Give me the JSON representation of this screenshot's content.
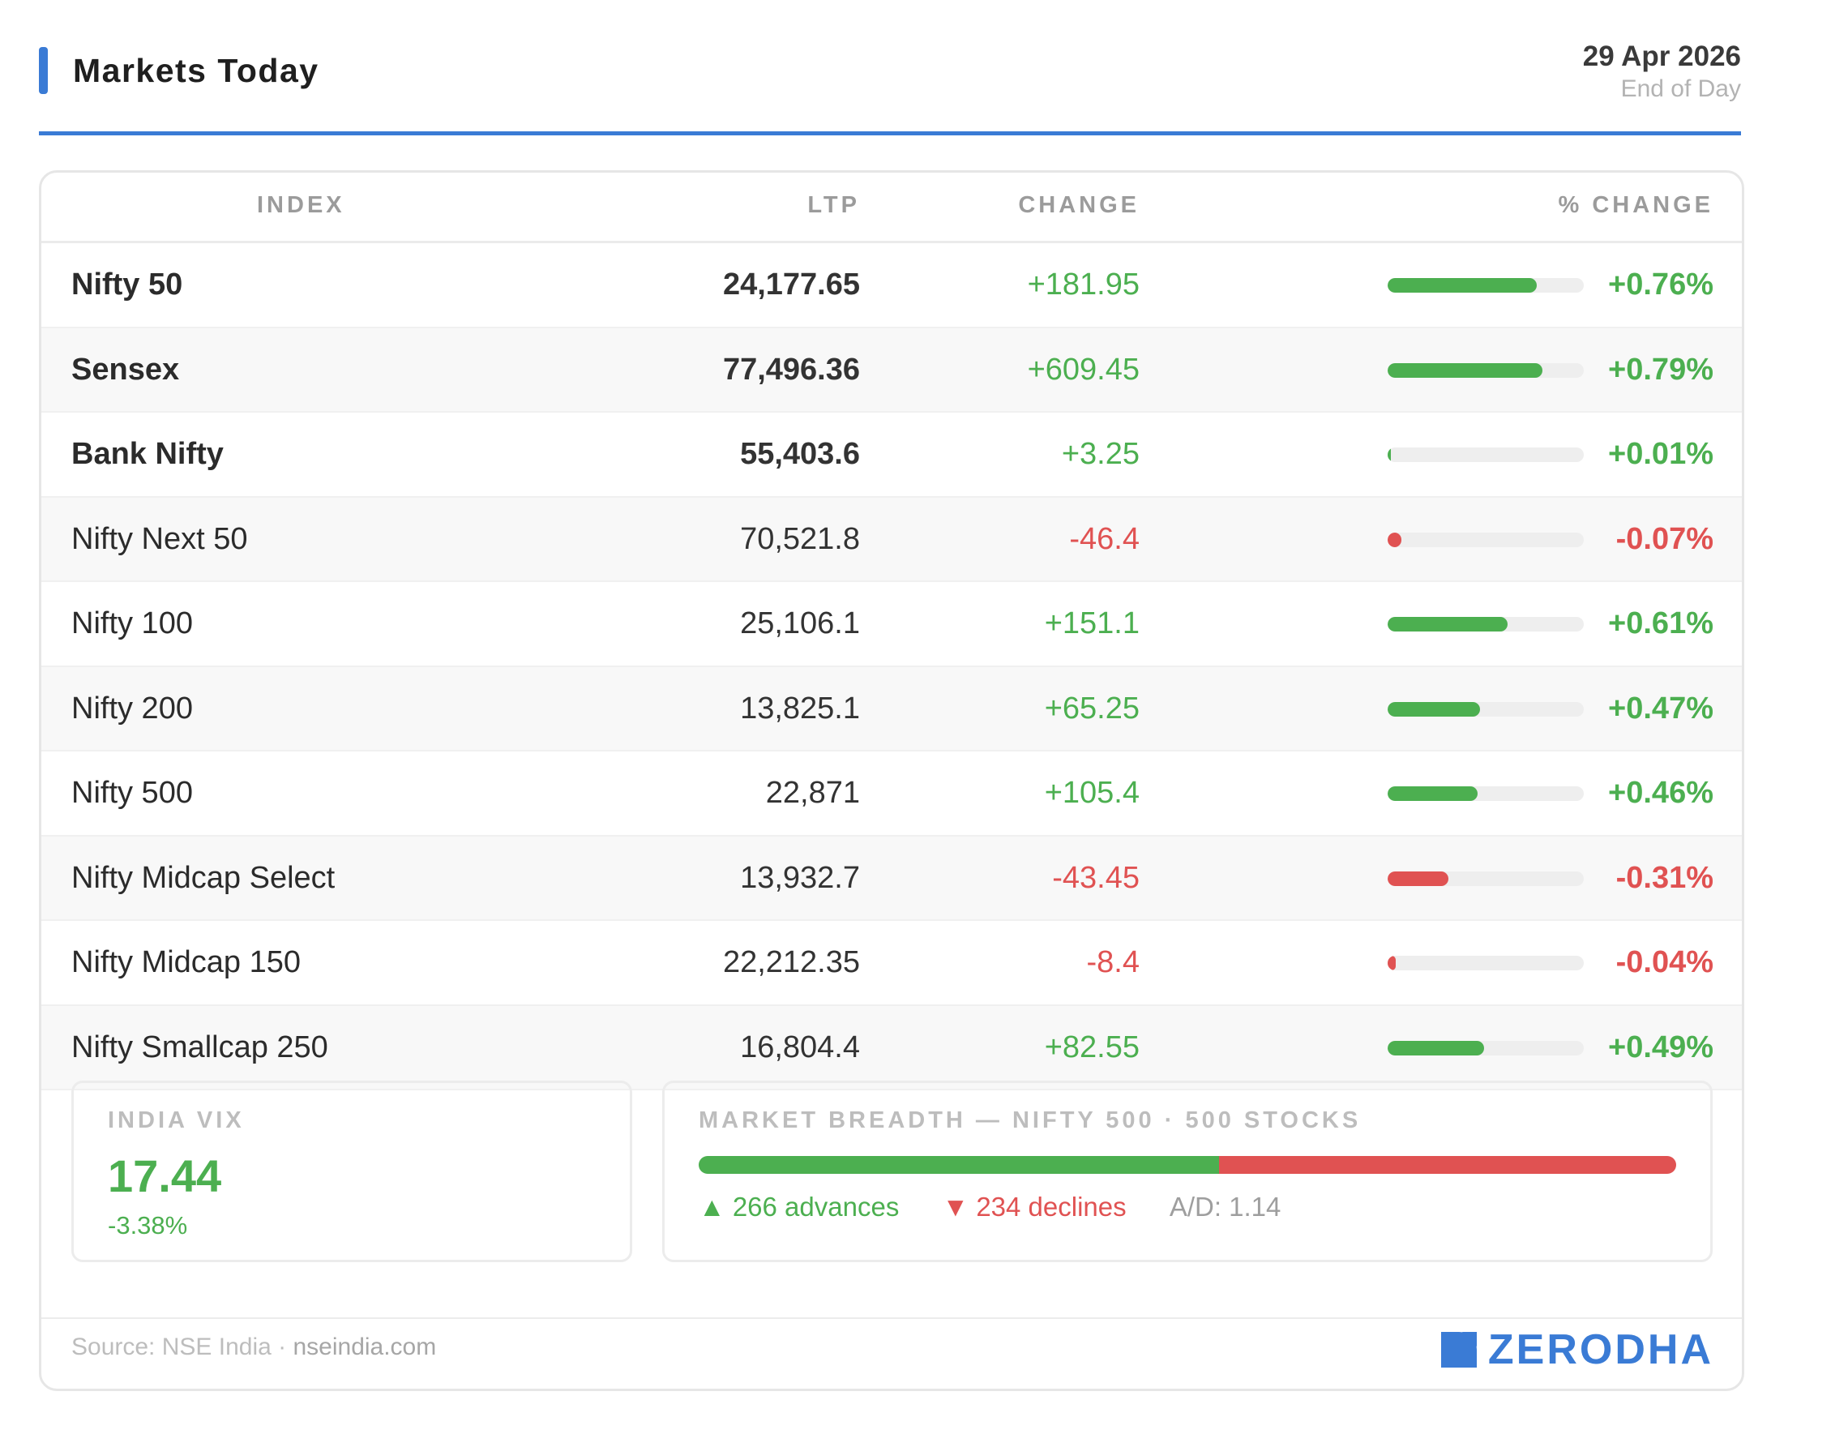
{
  "header": {
    "title": "Markets Today",
    "date": "29 Apr 2026",
    "subtitle": "End of Day",
    "accent_color": "#3a7bd5"
  },
  "table": {
    "columns": [
      "INDEX",
      "LTP",
      "CHANGE",
      "% CHANGE"
    ],
    "rows": [
      {
        "name": "Nifty 50",
        "ltp": "24,177.65",
        "change": "+181.95",
        "pct": "+0.76%",
        "pct_value": 0.76,
        "direction": "up",
        "bold": true
      },
      {
        "name": "Sensex",
        "ltp": "77,496.36",
        "change": "+609.45",
        "pct": "+0.79%",
        "pct_value": 0.79,
        "direction": "up",
        "bold": true
      },
      {
        "name": "Bank Nifty",
        "ltp": "55,403.6",
        "change": "+3.25",
        "pct": "+0.01%",
        "pct_value": 0.01,
        "direction": "up",
        "bold": true
      },
      {
        "name": "Nifty Next 50",
        "ltp": "70,521.8",
        "change": "-46.4",
        "pct": "-0.07%",
        "pct_value": -0.07,
        "direction": "down",
        "bold": false
      },
      {
        "name": "Nifty 100",
        "ltp": "25,106.1",
        "change": "+151.1",
        "pct": "+0.61%",
        "pct_value": 0.61,
        "direction": "up",
        "bold": false
      },
      {
        "name": "Nifty 200",
        "ltp": "13,825.1",
        "change": "+65.25",
        "pct": "+0.47%",
        "pct_value": 0.47,
        "direction": "up",
        "bold": false
      },
      {
        "name": "Nifty 500",
        "ltp": "22,871",
        "change": "+105.4",
        "pct": "+0.46%",
        "pct_value": 0.46,
        "direction": "up",
        "bold": false
      },
      {
        "name": "Nifty Midcap Select",
        "ltp": "13,932.7",
        "change": "-43.45",
        "pct": "-0.31%",
        "pct_value": -0.31,
        "direction": "down",
        "bold": false
      },
      {
        "name": "Nifty Midcap 150",
        "ltp": "22,212.35",
        "change": "-8.4",
        "pct": "-0.04%",
        "pct_value": -0.04,
        "direction": "down",
        "bold": false
      },
      {
        "name": "Nifty Smallcap 250",
        "ltp": "16,804.4",
        "change": "+82.55",
        "pct": "+0.49%",
        "pct_value": 0.49,
        "direction": "up",
        "bold": false
      }
    ]
  },
  "vix": {
    "label": "INDIA VIX",
    "value": "17.44",
    "change": "-3.38%"
  },
  "breadth": {
    "label": "MARKET BREADTH — NIFTY 500 · 500 STOCKS",
    "advances": 266,
    "declines": 234,
    "advances_text": "▲ 266 advances",
    "declines_text": "▼ 234 declines",
    "ad_ratio": "A/D: 1.14"
  },
  "footer": {
    "source_prefix": "Source: NSE India · ",
    "source_site": "nseindia.com",
    "brand": "ZERODHA"
  },
  "colors": {
    "up": "#4caf50",
    "down": "#e05252",
    "brand": "#3a7bd5"
  }
}
